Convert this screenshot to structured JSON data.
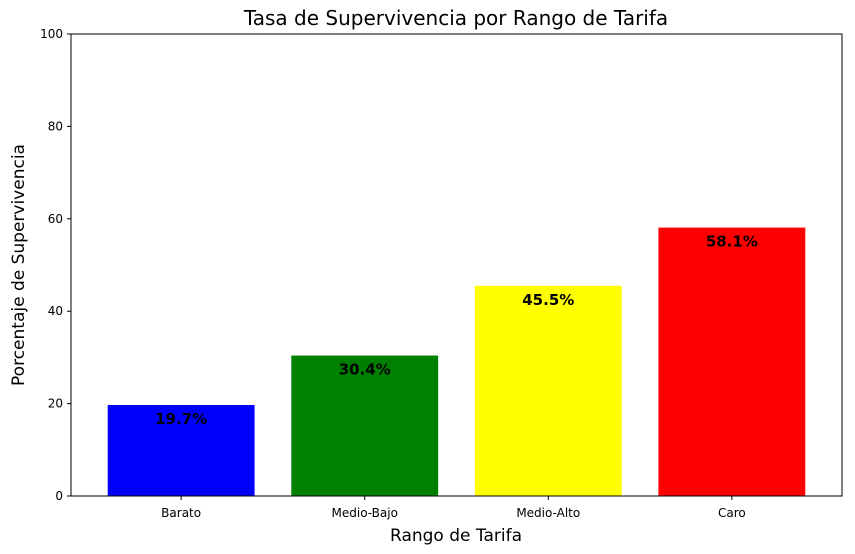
{
  "chart_data": {
    "type": "bar",
    "title": "Tasa de Supervivencia por Rango de Tarifa",
    "xlabel": "Rango de Tarifa",
    "ylabel": "Porcentaje de Supervivencia",
    "categories": [
      "Barato",
      "Medio-Bajo",
      "Medio-Alto",
      "Caro"
    ],
    "values": [
      19.7,
      30.4,
      45.5,
      58.1
    ],
    "data_labels": [
      "19.7%",
      "30.4%",
      "45.5%",
      "58.1%"
    ],
    "colors": [
      "#0000ff",
      "#008000",
      "#ffff00",
      "#ff0000"
    ],
    "ylim": [
      0,
      100
    ],
    "yticks": [
      0,
      20,
      40,
      60,
      80,
      100
    ],
    "grid": false,
    "legend": false
  }
}
